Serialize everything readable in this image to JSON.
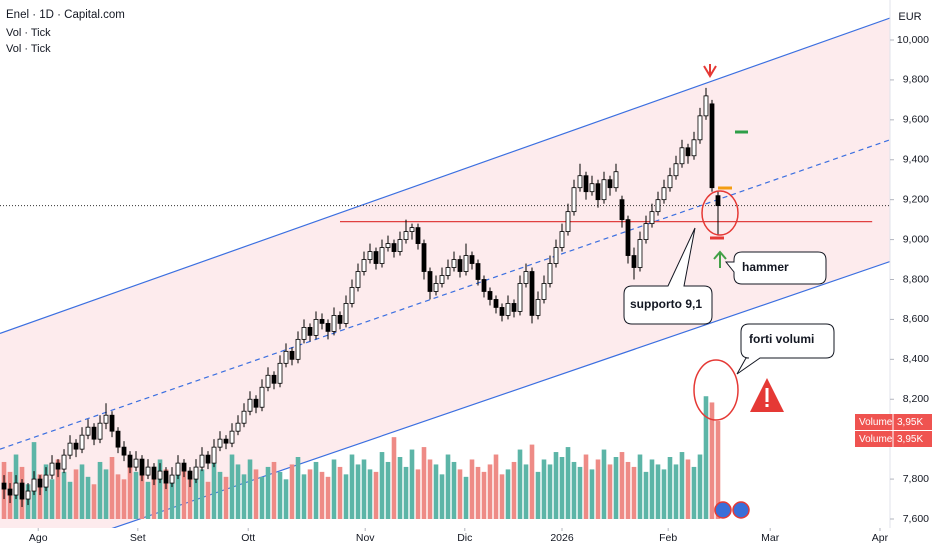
{
  "chart_data": {
    "type": "candlestick",
    "title": "Enel · 1D · Capital.com",
    "indicators": [
      "Vol · Tick",
      "Vol · Tick"
    ],
    "currency": "EUR",
    "xlim": [
      -0.67,
      147.67
    ],
    "xticks": [
      {
        "value": 5.7,
        "label": "Ago"
      },
      {
        "value": 22.3,
        "label": "Set"
      },
      {
        "value": 40.7,
        "label": "Ott"
      },
      {
        "value": 60.2,
        "label": "Nov"
      },
      {
        "value": 76.8,
        "label": "Dic"
      },
      {
        "value": 93,
        "label": "2026"
      },
      {
        "value": 110.7,
        "label": "Feb"
      },
      {
        "value": 127.7,
        "label": "Mar"
      },
      {
        "value": 146,
        "label": "Apr"
      }
    ],
    "ylim": [
      7.5,
      10.1
    ],
    "yticks": [
      {
        "value": 7.6,
        "label": "7,600"
      },
      {
        "value": 7.8,
        "label": "7,800"
      },
      {
        "value": 8.2,
        "label": "8,200"
      },
      {
        "value": 8.4,
        "label": "8,400"
      },
      {
        "value": 8.6,
        "label": "8,600"
      },
      {
        "value": 8.8,
        "label": "8,800"
      },
      {
        "value": 9.0,
        "label": "9,000"
      },
      {
        "value": 9.2,
        "label": "9,200"
      },
      {
        "value": 9.4,
        "label": "9,400"
      },
      {
        "value": 9.6,
        "label": "9,600"
      },
      {
        "value": 9.8,
        "label": "9,800"
      },
      {
        "value": 10.0,
        "label": "10,000"
      }
    ],
    "vlim": [
      0,
      5
    ],
    "series": [
      {
        "name": "Enel",
        "up_color": "#ffffff",
        "down_color": "#000000",
        "outline": "#000000",
        "values": [
          [
            7.78,
            7.82,
            7.7,
            7.75
          ],
          [
            7.75,
            7.78,
            7.68,
            7.72
          ],
          [
            7.72,
            7.82,
            7.7,
            7.78
          ],
          [
            7.78,
            7.8,
            7.66,
            7.7
          ],
          [
            7.7,
            7.78,
            7.67,
            7.74
          ],
          [
            7.74,
            7.84,
            7.72,
            7.8
          ],
          [
            7.8,
            7.82,
            7.72,
            7.76
          ],
          [
            7.76,
            7.86,
            7.74,
            7.82
          ],
          [
            7.82,
            7.92,
            7.8,
            7.88
          ],
          [
            7.88,
            7.9,
            7.81,
            7.85
          ],
          [
            7.85,
            7.95,
            7.83,
            7.92
          ],
          [
            7.92,
            8.02,
            7.9,
            7.98
          ],
          [
            7.98,
            8.0,
            7.91,
            7.95
          ],
          [
            7.95,
            8.06,
            7.93,
            8.02
          ],
          [
            8.02,
            8.1,
            8.0,
            8.06
          ],
          [
            8.06,
            8.08,
            7.97,
            8.0
          ],
          [
            8.0,
            8.12,
            7.98,
            8.08
          ],
          [
            8.08,
            8.18,
            8.05,
            8.12
          ],
          [
            8.12,
            8.14,
            8.01,
            8.04
          ],
          [
            8.04,
            8.06,
            7.93,
            7.96
          ],
          [
            7.96,
            7.99,
            7.89,
            7.92
          ],
          [
            7.92,
            7.94,
            7.83,
            7.86
          ],
          [
            7.86,
            7.94,
            7.84,
            7.9
          ],
          [
            7.9,
            7.92,
            7.79,
            7.82
          ],
          [
            7.82,
            7.9,
            7.8,
            7.86
          ],
          [
            7.86,
            7.88,
            7.77,
            7.8
          ],
          [
            7.8,
            7.88,
            7.78,
            7.84
          ],
          [
            7.84,
            7.86,
            7.75,
            7.78
          ],
          [
            7.78,
            7.86,
            7.76,
            7.82
          ],
          [
            7.82,
            7.92,
            7.8,
            7.88
          ],
          [
            7.88,
            7.9,
            7.81,
            7.84
          ],
          [
            7.84,
            7.86,
            7.76,
            7.8
          ],
          [
            7.8,
            7.9,
            7.78,
            7.86
          ],
          [
            7.86,
            7.96,
            7.84,
            7.92
          ],
          [
            7.92,
            7.94,
            7.85,
            7.88
          ],
          [
            7.88,
            8.0,
            7.86,
            7.96
          ],
          [
            7.96,
            8.04,
            7.94,
            8.0
          ],
          [
            8.0,
            8.02,
            7.95,
            7.98
          ],
          [
            7.98,
            8.08,
            7.96,
            8.04
          ],
          [
            8.04,
            8.12,
            8.02,
            8.08
          ],
          [
            8.08,
            8.18,
            8.06,
            8.14
          ],
          [
            8.14,
            8.24,
            8.12,
            8.2
          ],
          [
            8.2,
            8.22,
            8.13,
            8.16
          ],
          [
            8.16,
            8.3,
            8.14,
            8.26
          ],
          [
            8.26,
            8.36,
            8.24,
            8.32
          ],
          [
            8.32,
            8.34,
            8.25,
            8.28
          ],
          [
            8.28,
            8.42,
            8.26,
            8.38
          ],
          [
            8.38,
            8.48,
            8.36,
            8.44
          ],
          [
            8.44,
            8.46,
            8.37,
            8.4
          ],
          [
            8.4,
            8.54,
            8.38,
            8.5
          ],
          [
            8.5,
            8.6,
            8.48,
            8.56
          ],
          [
            8.56,
            8.58,
            8.49,
            8.52
          ],
          [
            8.52,
            8.64,
            8.5,
            8.6
          ],
          [
            8.6,
            8.63,
            8.55,
            8.58
          ],
          [
            8.58,
            8.6,
            8.5,
            8.54
          ],
          [
            8.54,
            8.66,
            8.52,
            8.62
          ],
          [
            8.62,
            8.64,
            8.55,
            8.58
          ],
          [
            8.58,
            8.72,
            8.56,
            8.68
          ],
          [
            8.68,
            8.8,
            8.66,
            8.76
          ],
          [
            8.76,
            8.88,
            8.74,
            8.84
          ],
          [
            8.84,
            8.94,
            8.82,
            8.9
          ],
          [
            8.9,
            8.98,
            8.88,
            8.94
          ],
          [
            8.94,
            8.96,
            8.85,
            8.88
          ],
          [
            8.88,
            9.0,
            8.86,
            8.96
          ],
          [
            8.96,
            9.02,
            8.94,
            8.98
          ],
          [
            8.98,
            9.0,
            8.91,
            8.94
          ],
          [
            8.94,
            9.04,
            8.92,
            9.0
          ],
          [
            9.0,
            9.1,
            8.98,
            9.04
          ],
          [
            9.04,
            9.08,
            9.0,
            9.06
          ],
          [
            9.06,
            9.08,
            8.95,
            8.98
          ],
          [
            8.98,
            9.0,
            8.8,
            8.84
          ],
          [
            8.84,
            8.86,
            8.7,
            8.74
          ],
          [
            8.74,
            8.82,
            8.72,
            8.78
          ],
          [
            8.78,
            8.86,
            8.76,
            8.82
          ],
          [
            8.82,
            8.9,
            8.8,
            8.86
          ],
          [
            8.86,
            8.94,
            8.84,
            8.9
          ],
          [
            8.9,
            8.92,
            8.81,
            8.84
          ],
          [
            8.84,
            8.98,
            8.82,
            8.92
          ],
          [
            8.92,
            8.94,
            8.85,
            8.88
          ],
          [
            8.88,
            8.9,
            8.77,
            8.8
          ],
          [
            8.8,
            8.82,
            8.71,
            8.74
          ],
          [
            8.74,
            8.76,
            8.67,
            8.7
          ],
          [
            8.7,
            8.72,
            8.63,
            8.66
          ],
          [
            8.66,
            8.68,
            8.59,
            8.62
          ],
          [
            8.62,
            8.72,
            8.6,
            8.68
          ],
          [
            8.68,
            8.7,
            8.61,
            8.64
          ],
          [
            8.64,
            8.82,
            8.62,
            8.78
          ],
          [
            8.78,
            8.88,
            8.76,
            8.84
          ],
          [
            8.84,
            8.86,
            8.58,
            8.62
          ],
          [
            8.62,
            8.74,
            8.6,
            8.7
          ],
          [
            8.7,
            8.82,
            8.68,
            8.78
          ],
          [
            8.78,
            8.92,
            8.76,
            8.88
          ],
          [
            8.88,
            9.0,
            8.86,
            8.96
          ],
          [
            8.96,
            9.08,
            8.94,
            9.04
          ],
          [
            9.04,
            9.18,
            9.02,
            9.14
          ],
          [
            9.14,
            9.3,
            9.12,
            9.26
          ],
          [
            9.26,
            9.38,
            9.24,
            9.32
          ],
          [
            9.32,
            9.34,
            9.2,
            9.24
          ],
          [
            9.24,
            9.32,
            9.22,
            9.28
          ],
          [
            9.28,
            9.3,
            9.16,
            9.2
          ],
          [
            9.2,
            9.34,
            9.18,
            9.3
          ],
          [
            9.3,
            9.32,
            9.22,
            9.26
          ],
          [
            9.26,
            9.38,
            9.24,
            9.34
          ],
          [
            9.2,
            9.22,
            9.06,
            9.1
          ],
          [
            9.1,
            9.12,
            8.88,
            8.92
          ],
          [
            8.92,
            8.96,
            8.8,
            8.86
          ],
          [
            8.86,
            9.04,
            8.84,
            9.0
          ],
          [
            9.0,
            9.12,
            8.98,
            9.08
          ],
          [
            9.08,
            9.18,
            9.06,
            9.14
          ],
          [
            9.14,
            9.24,
            9.12,
            9.2
          ],
          [
            9.2,
            9.3,
            9.18,
            9.26
          ],
          [
            9.26,
            9.36,
            9.24,
            9.32
          ],
          [
            9.32,
            9.42,
            9.3,
            9.38
          ],
          [
            9.38,
            9.5,
            9.36,
            9.46
          ],
          [
            9.46,
            9.48,
            9.38,
            9.42
          ],
          [
            9.42,
            9.54,
            9.4,
            9.5
          ],
          [
            9.5,
            9.66,
            9.48,
            9.62
          ],
          [
            9.62,
            9.76,
            9.6,
            9.72
          ],
          [
            9.68,
            9.7,
            9.24,
            9.26
          ],
          [
            9.22,
            9.24,
            9.02,
            9.17
          ]
        ]
      },
      {
        "name": "Volume",
        "up_color": "#5cb5a7",
        "down_color": "#ee8b86",
        "values": [
          2.3,
          1.9,
          2.6,
          2.1,
          1.4,
          3.1,
          1.8,
          2.2,
          1.6,
          2.4,
          1.9,
          1.5,
          2.0,
          2.2,
          1.7,
          1.4,
          2.3,
          2.0,
          2.5,
          1.8,
          1.6,
          2.2,
          1.9,
          2.1,
          1.5,
          1.8,
          2.4,
          2.0,
          1.7,
          1.9,
          2.1,
          1.6,
          1.8,
          2.0,
          1.5,
          2.3,
          1.9,
          1.7,
          2.6,
          2.2,
          1.8,
          2.4,
          2.0,
          1.7,
          2.1,
          2.3,
          1.9,
          1.6,
          2.2,
          2.5,
          1.8,
          2.0,
          2.3,
          1.9,
          1.7,
          2.4,
          2.1,
          1.8,
          2.6,
          2.2,
          2.4,
          2.0,
          1.9,
          2.7,
          2.3,
          3.3,
          2.5,
          2.1,
          2.8,
          2.0,
          2.9,
          2.4,
          2.2,
          1.8,
          2.6,
          2.3,
          2.0,
          1.7,
          2.4,
          2.1,
          1.9,
          2.2,
          2.6,
          1.8,
          2.0,
          2.3,
          2.8,
          2.2,
          3.0,
          1.9,
          2.4,
          2.2,
          2.7,
          2.5,
          2.9,
          2.3,
          2.1,
          2.6,
          2.0,
          2.4,
          2.8,
          2.2,
          2.5,
          2.7,
          2.3,
          2.1,
          2.6,
          1.9,
          2.4,
          2.2,
          2.0,
          2.5,
          2.2,
          2.7,
          2.4,
          2.1,
          2.6,
          4.95,
          4.7,
          3.95
        ]
      }
    ],
    "volume_tags": [
      {
        "name": "Volume",
        "value": 3.95,
        "label": "3,95K"
      },
      {
        "name": "Volume",
        "value": 3.95,
        "label": "3,95K"
      }
    ],
    "channel": {
      "upper": {
        "x": [
          -0.67,
          147.67
        ],
        "y": [
          8.53,
          10.11
        ]
      },
      "middle": {
        "x": [
          -0.67,
          147.67
        ],
        "y": [
          7.95,
          9.5
        ]
      },
      "lower": {
        "x": [
          -0.67,
          147.67
        ],
        "y": [
          7.36,
          8.89
        ]
      },
      "color": "#3b6fe0",
      "fill": "#fde8ea"
    },
    "support": {
      "x": [
        56,
        144.7
      ],
      "y": 9.09,
      "color": "#e04040"
    },
    "last_price": 9.17,
    "annotations": [
      "supporto 9,1",
      "hammer",
      "forti volumi"
    ]
  }
}
